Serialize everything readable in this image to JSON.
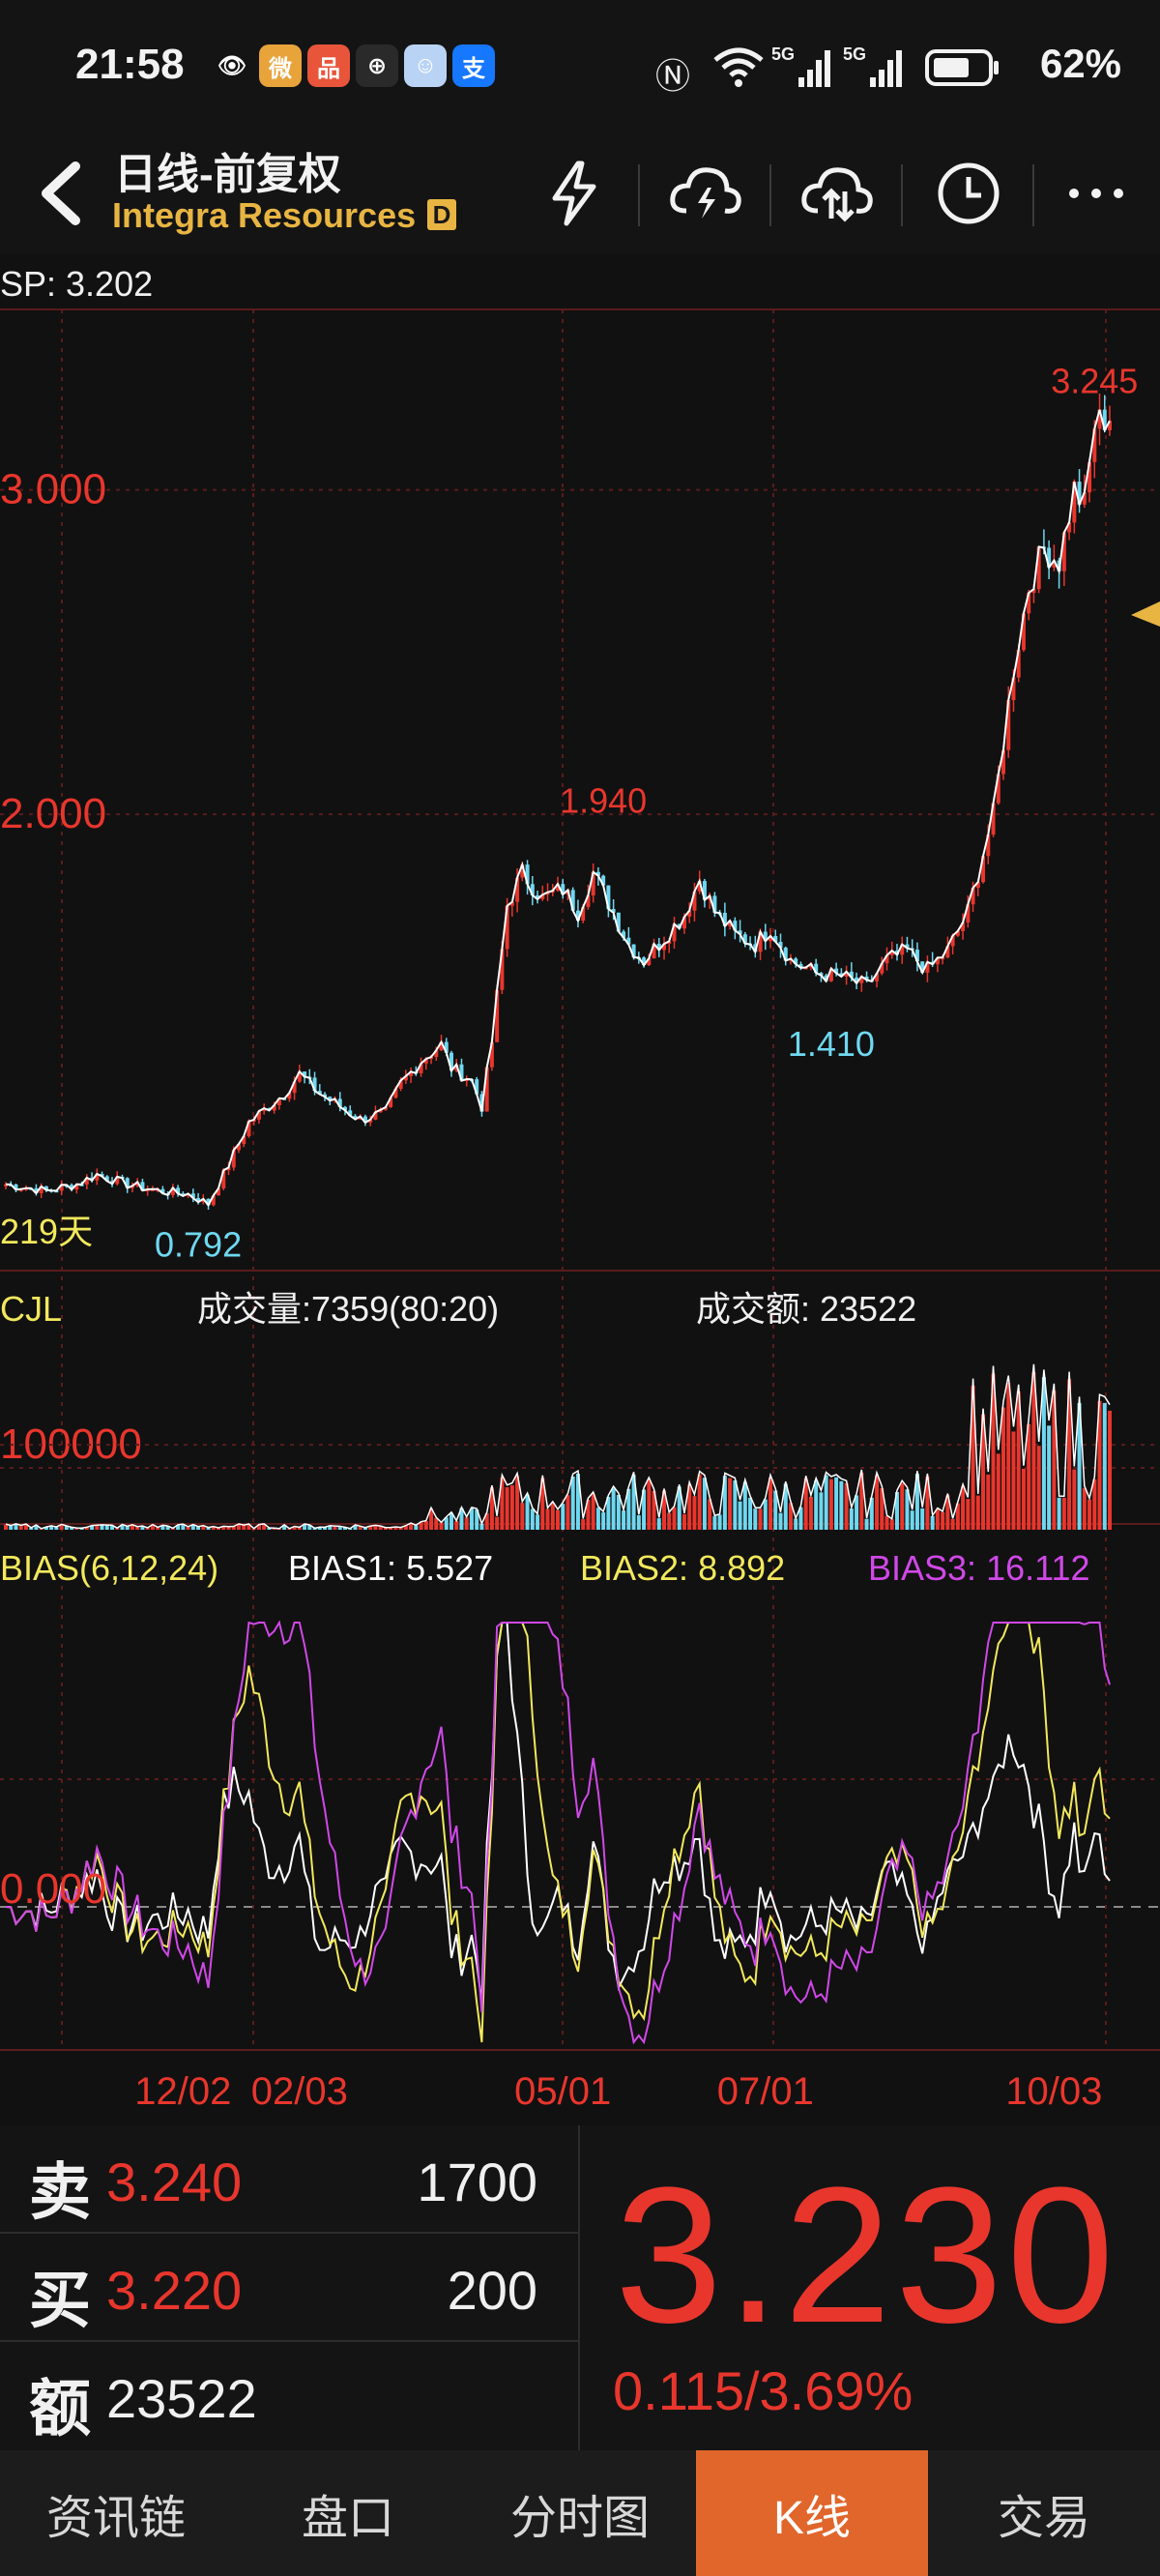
{
  "status_bar": {
    "time": "21:58",
    "network": "5G",
    "battery": "62%",
    "apps": [
      {
        "icon": "eye-icon",
        "glyph": "👁",
        "color": "#141414"
      },
      {
        "icon": "weibo-icon",
        "glyph": "微",
        "color": "#e8a33a"
      },
      {
        "icon": "app-red-icon",
        "glyph": "品",
        "color": "#e8553a"
      },
      {
        "icon": "app-dark-icon",
        "glyph": "⊕",
        "color": "#2a2a2a"
      },
      {
        "icon": "app-blue-icon",
        "glyph": "☺",
        "color": "#b9d3f5"
      },
      {
        "icon": "alipay-icon",
        "glyph": "支",
        "color": "#1677ff"
      }
    ]
  },
  "header": {
    "title": "日线-前复权",
    "subtitle": "Integra Resources",
    "badge": "D",
    "actions": [
      "flash-icon",
      "cloud-download-icon",
      "cloud-upload-icon",
      "clock-icon",
      "more-icon"
    ]
  },
  "chart_data": [
    {
      "type": "candlestick",
      "title": "",
      "sp_label": "SP: 3.202",
      "period_label": "219天",
      "y_tick_labels": [
        "3.000",
        "2.000"
      ],
      "ylim": [
        0.6,
        3.55
      ],
      "annotations": [
        {
          "label": "3.245",
          "x": 215,
          "y": 3.245,
          "color": "#e8362d"
        },
        {
          "label": "1.940",
          "x": 118,
          "y": 1.94,
          "color": "#e8362d"
        },
        {
          "label": "1.410",
          "x": 163,
          "y": 1.41,
          "color": "#6fd8f0"
        },
        {
          "label": "0.792",
          "x": 38,
          "y": 0.792,
          "color": "#6fd8f0"
        }
      ],
      "close_anchors": [
        [
          0,
          0.86
        ],
        [
          8,
          0.84
        ],
        [
          14,
          0.86
        ],
        [
          18,
          0.89
        ],
        [
          24,
          0.86
        ],
        [
          30,
          0.84
        ],
        [
          36,
          0.83
        ],
        [
          40,
          0.8
        ],
        [
          44,
          0.92
        ],
        [
          48,
          1.05
        ],
        [
          55,
          1.14
        ],
        [
          58,
          1.2
        ],
        [
          62,
          1.14
        ],
        [
          66,
          1.1
        ],
        [
          70,
          1.06
        ],
        [
          75,
          1.08
        ],
        [
          78,
          1.17
        ],
        [
          82,
          1.24
        ],
        [
          86,
          1.29
        ],
        [
          88,
          1.22
        ],
        [
          92,
          1.18
        ],
        [
          94,
          1.1
        ],
        [
          96,
          1.3
        ],
        [
          99,
          1.72
        ],
        [
          102,
          1.82
        ],
        [
          106,
          1.74
        ],
        [
          110,
          1.77
        ],
        [
          113,
          1.7
        ],
        [
          116,
          1.82
        ],
        [
          119,
          1.73
        ],
        [
          123,
          1.6
        ],
        [
          126,
          1.55
        ],
        [
          130,
          1.62
        ],
        [
          134,
          1.69
        ],
        [
          137,
          1.8
        ],
        [
          140,
          1.7
        ],
        [
          144,
          1.63
        ],
        [
          148,
          1.6
        ],
        [
          151,
          1.65
        ],
        [
          155,
          1.55
        ],
        [
          160,
          1.51
        ],
        [
          165,
          1.5
        ],
        [
          170,
          1.47
        ],
        [
          174,
          1.55
        ],
        [
          178,
          1.58
        ],
        [
          182,
          1.52
        ],
        [
          186,
          1.58
        ],
        [
          190,
          1.7
        ],
        [
          195,
          2.0
        ],
        [
          199,
          2.45
        ],
        [
          202,
          2.7
        ],
        [
          205,
          2.82
        ],
        [
          208,
          2.78
        ],
        [
          211,
          3.0
        ],
        [
          213,
          2.95
        ],
        [
          215,
          3.2
        ],
        [
          218,
          3.23
        ]
      ]
    },
    {
      "type": "bar",
      "title": "CJL",
      "info_1": "成交量:7359(80:20)",
      "info_2": "成交额: 23522",
      "y_tick_labels": [
        "100000"
      ],
      "ylim": [
        0,
        230000
      ]
    },
    {
      "type": "line",
      "title": "BIAS(6,12,24)",
      "series": [
        {
          "name": "BIAS1: 5.527",
          "color": "#ffffff"
        },
        {
          "name": "BIAS2: 8.892",
          "color": "#f2e85c"
        },
        {
          "name": "BIAS3: 16.112",
          "color": "#d048e8"
        }
      ],
      "y_tick_labels": [
        "0.000"
      ]
    }
  ],
  "x_axis_labels": [
    {
      "label": "12/02",
      "x": 35
    },
    {
      "label": "02/03",
      "x": 58
    },
    {
      "label": "05/01",
      "x": 110
    },
    {
      "label": "07/01",
      "x": 150
    },
    {
      "label": "10/03",
      "x": 207
    }
  ],
  "quote": {
    "sell_label": "卖",
    "sell_price": "3.240",
    "sell_qty": "1700",
    "buy_label": "买",
    "buy_price": "3.220",
    "buy_qty": "200",
    "amount_label": "额",
    "amount": "23522",
    "last_price": "3.230",
    "change": "0.115/3.69%"
  },
  "bottom_nav": {
    "items": [
      "资讯链",
      "盘口",
      "分时图",
      "K线",
      "交易"
    ],
    "active": "K线"
  }
}
